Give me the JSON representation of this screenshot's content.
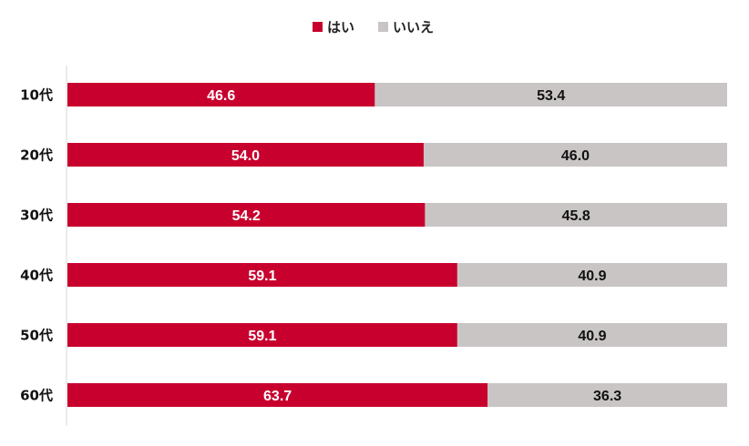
{
  "chart_data": {
    "type": "bar",
    "orientation": "horizontal",
    "stacked": true,
    "percent_stacked": true,
    "title": "",
    "xlabel": "",
    "ylabel": "",
    "xlim": [
      0,
      100
    ],
    "grid": false,
    "legend_position": "top-center",
    "categories": [
      "10代",
      "20代",
      "30代",
      "40代",
      "50代",
      "60代"
    ],
    "series": [
      {
        "name": "はい",
        "color": "#c8002e",
        "label_color": "#ffffff",
        "values": [
          46.6,
          54.0,
          54.2,
          59.1,
          59.1,
          63.7
        ]
      },
      {
        "name": "いいえ",
        "color": "#c9c5c5",
        "label_color": "#111111",
        "values": [
          53.4,
          46.0,
          45.8,
          40.9,
          40.9,
          36.3
        ]
      }
    ]
  }
}
